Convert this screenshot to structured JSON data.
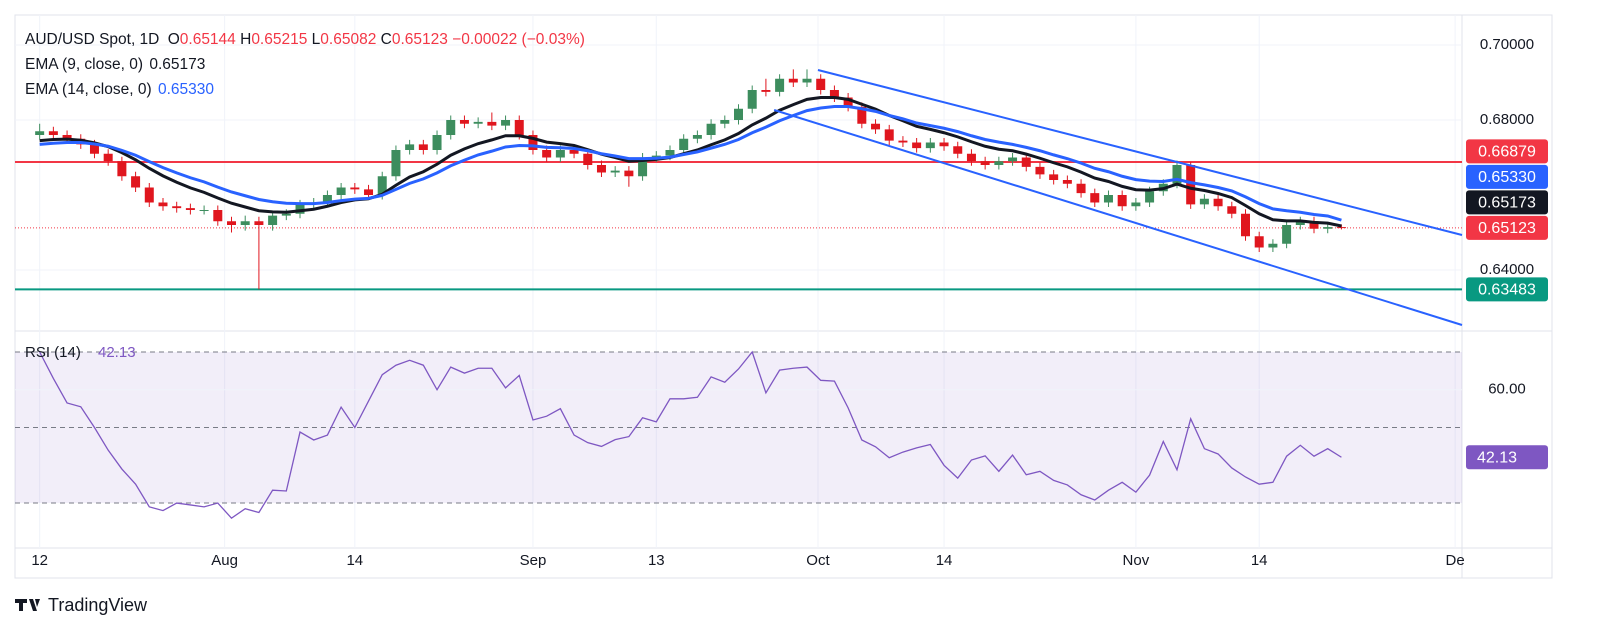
{
  "chart_data": {
    "type": "candlestick",
    "symbol": "AUD/USD Spot, 1D",
    "header": [
      {
        "key": "O",
        "text": "0.65144"
      },
      {
        "key": "H",
        "text": "0.65215"
      },
      {
        "key": "L",
        "text": "0.65082"
      },
      {
        "key": "C",
        "text": "0.65123"
      }
    ],
    "change": "−0.00022 (−0.03%)",
    "header_color": "#f23645",
    "up_color": "#3d8d5e",
    "down_color": "#e0161e",
    "open": [
      0.676,
      0.677,
      0.676,
      0.675,
      0.6735,
      0.671,
      0.669,
      0.665,
      0.662,
      0.658,
      0.657,
      0.6565,
      0.656,
      0.656,
      0.653,
      0.652,
      0.653,
      0.652,
      0.6545,
      0.655,
      0.6575,
      0.658,
      0.66,
      0.662,
      0.6615,
      0.66,
      0.665,
      0.672,
      0.6735,
      0.672,
      0.676,
      0.68,
      0.679,
      0.6795,
      0.6785,
      0.68,
      0.676,
      0.672,
      0.67,
      0.672,
      0.671,
      0.668,
      0.666,
      0.6665,
      0.665,
      0.67,
      0.6705,
      0.672,
      0.675,
      0.676,
      0.679,
      0.68,
      0.683,
      0.688,
      0.6875,
      0.691,
      0.69,
      0.691,
      0.688,
      0.686,
      0.6835,
      0.679,
      0.6775,
      0.6745,
      0.674,
      0.6725,
      0.674,
      0.673,
      0.671,
      0.669,
      0.668,
      0.669,
      0.67,
      0.6675,
      0.6655,
      0.664,
      0.663,
      0.6605,
      0.658,
      0.66,
      0.657,
      0.658,
      0.661,
      0.663,
      0.668,
      0.6575,
      0.659,
      0.657,
      0.655,
      0.649,
      0.646,
      0.647,
      0.652,
      0.653,
      0.651,
      0.65144
    ],
    "high": [
      0.679,
      0.6782,
      0.6772,
      0.6762,
      0.6747,
      0.6722,
      0.6702,
      0.6662,
      0.6632,
      0.6592,
      0.6582,
      0.6577,
      0.6572,
      0.6572,
      0.6542,
      0.6545,
      0.6542,
      0.6557,
      0.6562,
      0.6587,
      0.6592,
      0.6612,
      0.6632,
      0.6632,
      0.6627,
      0.6662,
      0.6732,
      0.6747,
      0.6747,
      0.6772,
      0.6812,
      0.6812,
      0.6807,
      0.682,
      0.6812,
      0.6812,
      0.6772,
      0.6732,
      0.6732,
      0.6732,
      0.6722,
      0.6692,
      0.6677,
      0.6677,
      0.6712,
      0.6717,
      0.6732,
      0.6762,
      0.6772,
      0.6802,
      0.6812,
      0.6842,
      0.6892,
      0.691,
      0.6922,
      0.6935,
      0.6935,
      0.6922,
      0.6892,
      0.6872,
      0.6847,
      0.6802,
      0.6787,
      0.6757,
      0.6752,
      0.6752,
      0.6752,
      0.6742,
      0.6722,
      0.6702,
      0.6702,
      0.6712,
      0.6712,
      0.6687,
      0.6667,
      0.6652,
      0.6642,
      0.6617,
      0.6612,
      0.6612,
      0.6592,
      0.6622,
      0.6642,
      0.6692,
      0.6688,
      0.6602,
      0.6602,
      0.6582,
      0.6562,
      0.6502,
      0.6482,
      0.6532,
      0.6542,
      0.6542,
      0.6526,
      0.65215
    ],
    "low": [
      0.6748,
      0.6748,
      0.6738,
      0.6723,
      0.6698,
      0.6678,
      0.6638,
      0.6608,
      0.6568,
      0.6558,
      0.6553,
      0.6548,
      0.6548,
      0.6518,
      0.65,
      0.6505,
      0.63483,
      0.6505,
      0.6533,
      0.6538,
      0.6563,
      0.6568,
      0.6588,
      0.6603,
      0.6588,
      0.6588,
      0.6638,
      0.6708,
      0.6708,
      0.6708,
      0.6748,
      0.6778,
      0.6778,
      0.6773,
      0.6773,
      0.6748,
      0.6708,
      0.6688,
      0.6688,
      0.6698,
      0.6668,
      0.6648,
      0.6648,
      0.6622,
      0.6638,
      0.6688,
      0.6693,
      0.6708,
      0.6738,
      0.6748,
      0.6778,
      0.6788,
      0.6818,
      0.6863,
      0.6863,
      0.6888,
      0.6888,
      0.6868,
      0.6848,
      0.6823,
      0.6778,
      0.6763,
      0.6733,
      0.6728,
      0.6713,
      0.6713,
      0.6718,
      0.6698,
      0.6678,
      0.6668,
      0.6668,
      0.6678,
      0.6663,
      0.6643,
      0.6628,
      0.6618,
      0.6593,
      0.6568,
      0.6568,
      0.6558,
      0.6558,
      0.6568,
      0.6598,
      0.6618,
      0.6563,
      0.6563,
      0.6558,
      0.6538,
      0.6478,
      0.6448,
      0.6448,
      0.6458,
      0.6508,
      0.6498,
      0.6498,
      0.65082
    ],
    "close": [
      0.677,
      0.676,
      0.675,
      0.6735,
      0.671,
      0.669,
      0.665,
      0.662,
      0.658,
      0.657,
      0.6565,
      0.656,
      0.656,
      0.653,
      0.652,
      0.653,
      0.652,
      0.6545,
      0.655,
      0.6575,
      0.658,
      0.66,
      0.662,
      0.6615,
      0.66,
      0.665,
      0.672,
      0.6735,
      0.672,
      0.676,
      0.68,
      0.679,
      0.6795,
      0.6785,
      0.68,
      0.676,
      0.672,
      0.67,
      0.672,
      0.671,
      0.668,
      0.666,
      0.6665,
      0.665,
      0.67,
      0.6705,
      0.672,
      0.675,
      0.676,
      0.679,
      0.68,
      0.683,
      0.688,
      0.6875,
      0.691,
      0.69,
      0.691,
      0.688,
      0.686,
      0.6835,
      0.679,
      0.6775,
      0.6745,
      0.674,
      0.6725,
      0.674,
      0.673,
      0.671,
      0.669,
      0.668,
      0.669,
      0.67,
      0.6675,
      0.6655,
      0.664,
      0.663,
      0.6605,
      0.658,
      0.66,
      0.657,
      0.658,
      0.661,
      0.663,
      0.668,
      0.6575,
      0.659,
      0.657,
      0.655,
      0.649,
      0.646,
      0.647,
      0.652,
      0.653,
      0.651,
      0.65144,
      0.65123
    ],
    "overlays": [
      {
        "name": "EMA (9, close, 0)",
        "color": "#131722",
        "last_label": "0.65173",
        "values": [
          0.6745,
          0.6748,
          0.6749,
          0.6746,
          0.6739,
          0.6729,
          0.6713,
          0.6694,
          0.6671,
          0.6651,
          0.6634,
          0.6619,
          0.6607,
          0.6592,
          0.6578,
          0.6568,
          0.6558,
          0.6555,
          0.6554,
          0.6558,
          0.6562,
          0.657,
          0.658,
          0.6587,
          0.659,
          0.6602,
          0.6626,
          0.6648,
          0.6662,
          0.6682,
          0.6706,
          0.6723,
          0.6737,
          0.6747,
          0.6758,
          0.6758,
          0.6751,
          0.6741,
          0.6737,
          0.6732,
          0.6721,
          0.6709,
          0.67,
          0.669,
          0.6692,
          0.6695,
          0.67,
          0.671,
          0.672,
          0.6734,
          0.6747,
          0.6764,
          0.6787,
          0.6805,
          0.6826,
          0.6841,
          0.6855,
          0.686,
          0.686,
          0.6855,
          0.6842,
          0.6829,
          0.6812,
          0.6798,
          0.6783,
          0.6775,
          0.6766,
          0.6755,
          0.6742,
          0.673,
          0.6722,
          0.6718,
          0.6709,
          0.6698,
          0.6686,
          0.6675,
          0.6661,
          0.6645,
          0.6636,
          0.6623,
          0.6614,
          0.6613,
          0.6617,
          0.6629,
          0.6618,
          0.6612,
          0.6604,
          0.6593,
          0.6572,
          0.655,
          0.6534,
          0.6531,
          0.6531,
          0.6527,
          0.6525,
          0.65173
        ]
      },
      {
        "name": "EMA (14, close, 0)",
        "color": "#2962ff",
        "last_label": "0.65330",
        "values": [
          0.6735,
          0.6738,
          0.674,
          0.674,
          0.6736,
          0.673,
          0.6719,
          0.6706,
          0.6689,
          0.6673,
          0.6659,
          0.6646,
          0.6635,
          0.6621,
          0.6608,
          0.6598,
          0.6588,
          0.6582,
          0.6578,
          0.6577,
          0.6577,
          0.658,
          0.6585,
          0.6589,
          0.6591,
          0.6599,
          0.6615,
          0.6631,
          0.6643,
          0.6659,
          0.6678,
          0.6693,
          0.6707,
          0.6717,
          0.6728,
          0.6732,
          0.6731,
          0.6727,
          0.6726,
          0.6724,
          0.6718,
          0.671,
          0.6704,
          0.6697,
          0.6697,
          0.6698,
          0.6701,
          0.6708,
          0.6715,
          0.6725,
          0.6735,
          0.6748,
          0.6766,
          0.6781,
          0.6798,
          0.6812,
          0.6825,
          0.6832,
          0.6836,
          0.6836,
          0.683,
          0.6823,
          0.6812,
          0.6803,
          0.6792,
          0.6785,
          0.6778,
          0.6769,
          0.6758,
          0.6748,
          0.6741,
          0.6735,
          0.6727,
          0.6718,
          0.6707,
          0.6697,
          0.6685,
          0.6671,
          0.6662,
          0.665,
          0.6641,
          0.6637,
          0.6636,
          0.6642,
          0.6633,
          0.6627,
          0.662,
          0.6611,
          0.6595,
          0.6577,
          0.6563,
          0.6558,
          0.6554,
          0.6548,
          0.6544,
          0.6533
        ]
      }
    ],
    "trendlines": [
      {
        "color": "#2962ff",
        "x": [
          56.8,
          103.8
        ],
        "y": [
          0.69333,
          0.64933
        ]
      },
      {
        "color": "#2962ff",
        "x": [
          53.6,
          103.8
        ],
        "y": [
          0.68267,
          0.62533
        ]
      }
    ],
    "levels": [
      {
        "value": 0.66879,
        "color": "#f23645"
      },
      {
        "value": 0.63483,
        "color": "#089981"
      }
    ],
    "last_price": {
      "value": 0.65123,
      "color": "#f23645"
    },
    "tags": [
      {
        "value": 0.66879,
        "label": "0.66879",
        "color": "#f23645"
      },
      {
        "value": 0.6533,
        "label": "0.65330",
        "color": "#2962ff"
      },
      {
        "value": 0.65173,
        "label": "0.65173",
        "color": "#131722"
      },
      {
        "value": 0.65123,
        "label": "0.65123",
        "color": "#f23645"
      },
      {
        "value": 0.63483,
        "label": "0.63483",
        "color": "#089981"
      }
    ],
    "xlim": [
      -1.8,
      103.8
    ],
    "xticks": [
      {
        "value": 0,
        "label": "12"
      },
      {
        "value": 13.5,
        "label": "Aug"
      },
      {
        "value": 23,
        "label": "14"
      },
      {
        "value": 36,
        "label": "Sep"
      },
      {
        "value": 45,
        "label": "13"
      },
      {
        "value": 56.8,
        "label": "Oct"
      },
      {
        "value": 66,
        "label": "14"
      },
      {
        "value": 80,
        "label": "Nov"
      },
      {
        "value": 89,
        "label": "14"
      },
      {
        "value": 103.3,
        "label": "De"
      }
    ],
    "ylim": [
      0.624,
      0.708
    ],
    "yticks": [
      {
        "value": 0.64,
        "label": "0.64000"
      },
      {
        "value": 0.68,
        "label": "0.68000"
      },
      {
        "value": 0.7,
        "label": "0.70000"
      }
    ],
    "grid": true,
    "rsi": {
      "name": "RSI (14)",
      "color": "#7e57c2",
      "values": [
        70,
        63,
        56.5,
        55.5,
        50,
        44,
        39,
        35,
        29,
        28,
        30,
        29.5,
        29,
        30,
        26,
        28.5,
        27.5,
        33.4,
        33.2,
        48.8,
        46.7,
        48,
        55.4,
        50,
        57,
        64,
        66.5,
        67.8,
        66.5,
        60,
        66,
        64.4,
        65.7,
        65.7,
        60.5,
        63.8,
        52,
        53,
        55,
        48,
        46,
        45,
        46.8,
        47.6,
        52.6,
        51.5,
        57.6,
        57.6,
        58,
        63.4,
        62,
        65.5,
        70,
        59.2,
        65.2,
        65.7,
        66,
        62.5,
        62.3,
        55.2,
        46.7,
        44.9,
        42,
        43.5,
        44.6,
        45.5,
        40,
        36.6,
        41.4,
        42.5,
        38.4,
        42.7,
        37.5,
        38.4,
        36,
        34.8,
        32.2,
        30.8,
        33.4,
        35.5,
        32.9,
        37.4,
        46.3,
        38.8,
        52.3,
        44.4,
        43,
        39.3,
        36.9,
        35,
        35.5,
        42.4,
        45.3,
        42.4,
        44.4,
        42.13
      ],
      "ylim": [
        18.1,
        74.5
      ],
      "yticks": [
        {
          "value": 60,
          "label": "60.00"
        }
      ],
      "bands": [
        30,
        50,
        70
      ]
    }
  },
  "brand": "TradingView"
}
